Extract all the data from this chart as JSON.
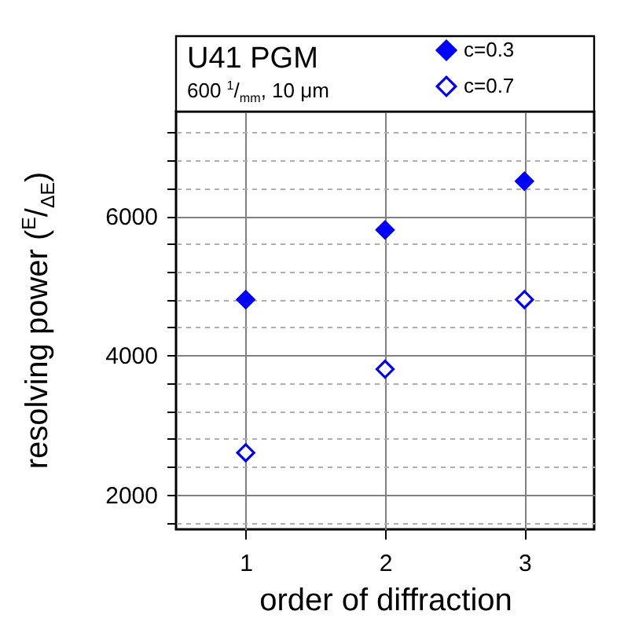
{
  "chart_data": {
    "type": "scatter",
    "title": "U41 PGM",
    "subtitle": "600 $^{1}$/$_{mm}$, 10 μm",
    "xlabel": "order of diffraction",
    "ylabel": "resolving power ($^{E}$/$_{ΔE}$)",
    "x": [
      1,
      2,
      3
    ],
    "series": [
      {
        "name": "c=0.3",
        "color": "#0000ff",
        "marker": "diamond",
        "values": [
          4800,
          5800,
          6500
        ]
      },
      {
        "name": "c=0.7",
        "color": "#0000ff",
        "marker": "diamond-open",
        "values": [
          2600,
          3800,
          4800
        ]
      }
    ],
    "xlim": [
      0.5,
      3.5
    ],
    "xticks": [
      1,
      2,
      3
    ],
    "ylim": [
      1500,
      7500
    ],
    "yticks": [
      {
        "value": 1600,
        "label": null
      },
      2000,
      {
        "value": 2400,
        "label": null
      },
      {
        "value": 2800,
        "label": null
      },
      {
        "value": 3200,
        "label": null
      },
      {
        "value": 3600,
        "label": null
      },
      4000,
      {
        "value": 4400,
        "label": null
      },
      {
        "value": 4800,
        "label": null
      },
      {
        "value": 5200,
        "label": null
      },
      {
        "value": 5600,
        "label": null
      },
      6000,
      {
        "value": 6400,
        "label": null
      },
      {
        "value": 6800,
        "label": null
      },
      {
        "value": 7200,
        "label": null
      }
    ],
    "grid": true,
    "legend": "top right"
  }
}
